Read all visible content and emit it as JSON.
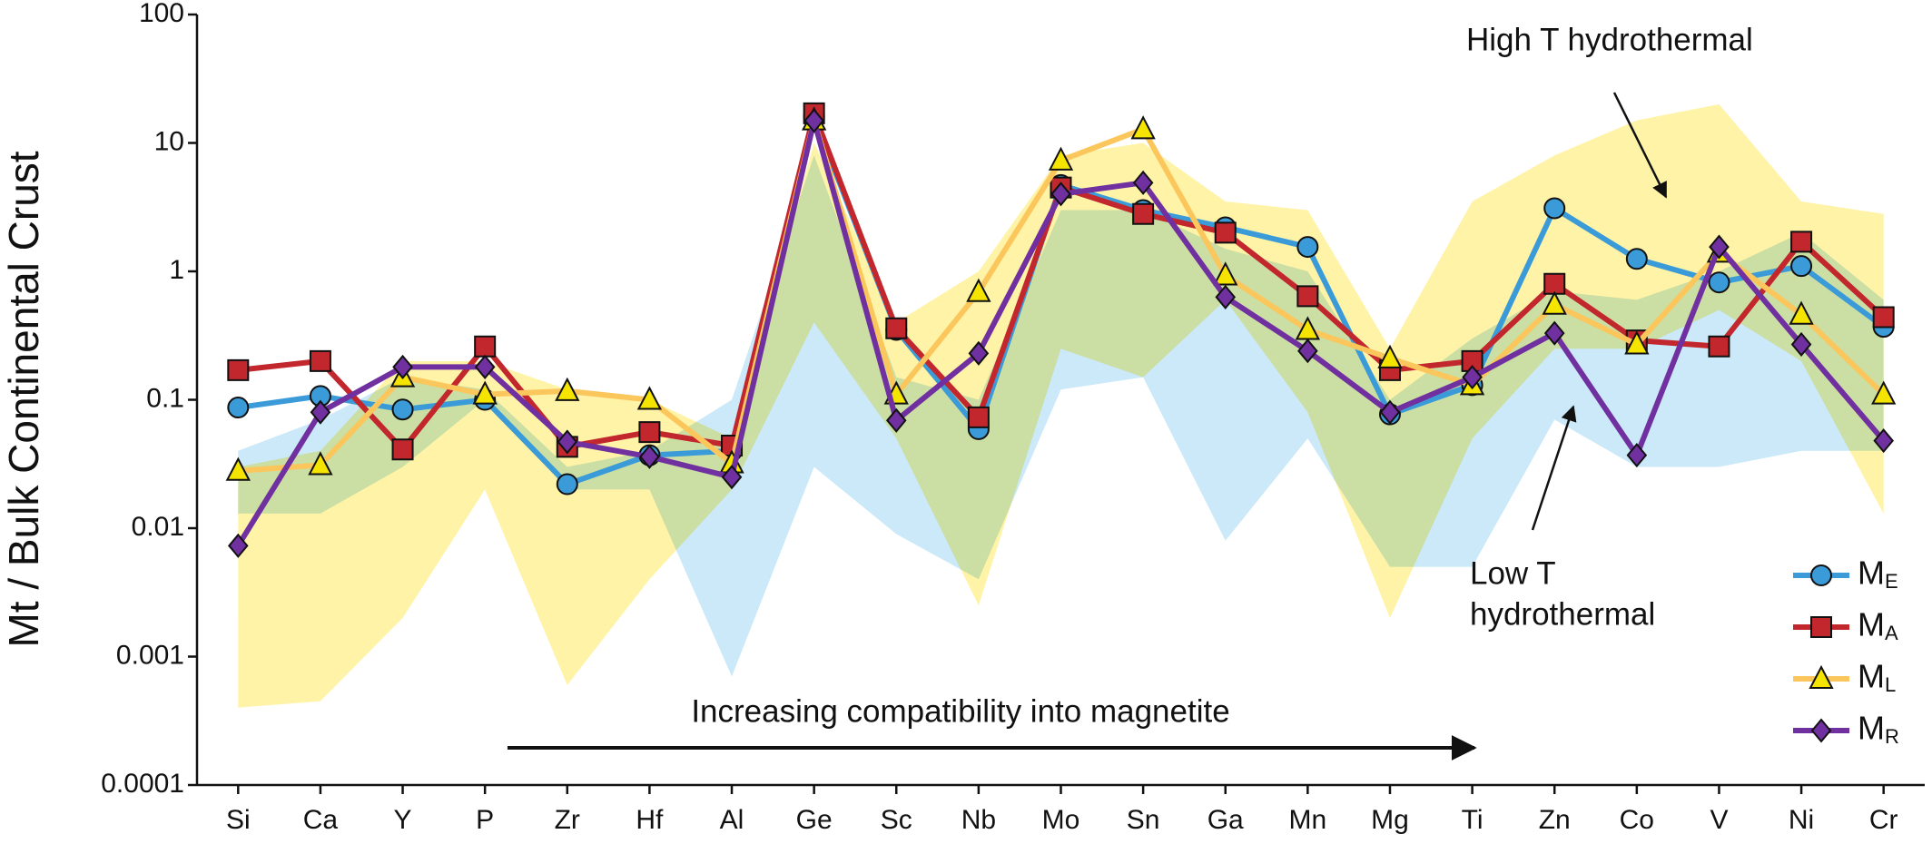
{
  "chart_data": {
    "type": "line",
    "y_label": "Mt / Bulk Continental Crust",
    "log_y": true,
    "categories": [
      "Si",
      "Ca",
      "Y",
      "P",
      "Zr",
      "Hf",
      "Al",
      "Ge",
      "Sc",
      "Nb",
      "Mo",
      "Sn",
      "Ga",
      "Mn",
      "Mg",
      "Ti",
      "Zn",
      "Co",
      "V",
      "Ni",
      "Cr"
    ],
    "ylim": [
      0.0001,
      100
    ],
    "yticks": [
      0.0001,
      0.001,
      0.01,
      0.1,
      1,
      10,
      100
    ],
    "bands": [
      {
        "color": "#fff3a8",
        "lower": [
          0.0004,
          0.00045,
          0.002,
          0.02,
          0.0006,
          0.004,
          0.02,
          0.4,
          0.05,
          0.0025,
          0.25,
          0.15,
          0.6,
          0.08,
          0.002,
          0.05,
          0.25,
          0.25,
          0.5,
          0.2,
          0.013
        ],
        "upper": [
          0.03,
          0.04,
          0.2,
          0.2,
          0.12,
          0.1,
          0.05,
          10,
          0.4,
          1,
          8,
          10,
          3.5,
          3,
          0.25,
          3.5,
          8,
          15,
          20,
          3.5,
          2.8
        ]
      },
      {
        "color": "#cbe9f8",
        "lower": [
          0.013,
          0.013,
          0.03,
          0.1,
          0.02,
          0.02,
          0.0007,
          0.03,
          0.009,
          0.004,
          0.12,
          0.15,
          0.008,
          0.05,
          0.005,
          0.005,
          0.07,
          0.03,
          0.03,
          0.04,
          0.04
        ],
        "upper": [
          0.04,
          0.07,
          0.15,
          0.12,
          0.03,
          0.04,
          0.1,
          8,
          0.15,
          0.1,
          3,
          3,
          1.5,
          1,
          0.1,
          0.3,
          0.7,
          0.6,
          1,
          2,
          0.6
        ]
      }
    ],
    "series": [
      {
        "name": "ME",
        "color": "#3b9bd8",
        "marker": "circle",
        "marker_color": "#3b9bd8",
        "values": [
          0.087,
          0.107,
          0.084,
          0.1,
          0.022,
          0.037,
          0.04,
          16,
          0.35,
          0.059,
          4.7,
          3,
          2.2,
          1.55,
          0.077,
          0.13,
          3.1,
          1.25,
          0.82,
          1.1,
          0.37
        ]
      },
      {
        "name": "MA",
        "color": "#c1272d",
        "marker": "square",
        "marker_color": "#c1272d",
        "values": [
          0.17,
          0.2,
          0.041,
          0.26,
          0.043,
          0.056,
          0.044,
          17,
          0.36,
          0.073,
          4.5,
          2.8,
          2.0,
          0.64,
          0.17,
          0.2,
          0.8,
          0.29,
          0.26,
          1.7,
          0.44
        ]
      },
      {
        "name": "ML",
        "color": "#fbc75c",
        "marker": "triangle",
        "marker_color": "#f4e400",
        "values": [
          0.028,
          0.031,
          0.15,
          0.11,
          0.117,
          0.1,
          0.032,
          15,
          0.11,
          0.69,
          7.3,
          12.8,
          0.93,
          0.35,
          0.21,
          0.13,
          0.55,
          0.27,
          1.4,
          0.46,
          0.11
        ]
      },
      {
        "name": "MR",
        "color": "#7030a0",
        "marker": "diamond",
        "marker_color": "#7030a0",
        "values": [
          0.0073,
          0.08,
          0.18,
          0.18,
          0.047,
          0.036,
          0.025,
          14.9,
          0.069,
          0.23,
          4.0,
          4.9,
          0.63,
          0.24,
          0.08,
          0.15,
          0.33,
          0.037,
          1.55,
          0.27,
          0.048
        ]
      }
    ],
    "annotations": [
      {
        "text": [
          "Increasing compatibility into magnetite"
        ]
      },
      {
        "text": [
          "High T hydrothermal"
        ]
      },
      {
        "text": [
          "Low T",
          "hydrothermal"
        ]
      }
    ]
  }
}
